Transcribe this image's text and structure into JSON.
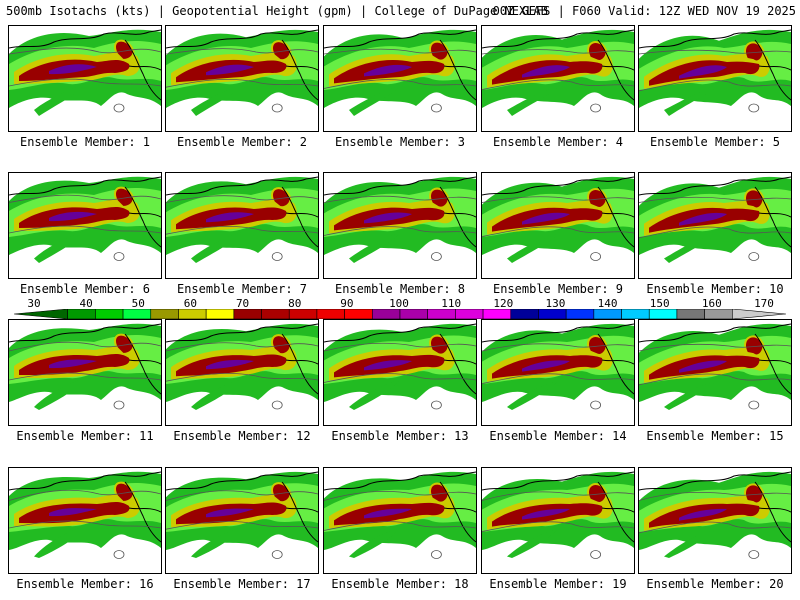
{
  "header": {
    "title": "500mb Isotachs (kts) | Geopotential Height (gpm) | College of DuPage NEXLAB",
    "run_info": "00Z GEFS | F060 Valid: 12Z WED NOV 19 2025"
  },
  "panels": [
    {
      "label": "Ensemble Member: 1"
    },
    {
      "label": "Ensemble Member: 2"
    },
    {
      "label": "Ensemble Member: 3"
    },
    {
      "label": "Ensemble Member: 4"
    },
    {
      "label": "Ensemble Member: 5"
    },
    {
      "label": "Ensemble Member: 6"
    },
    {
      "label": "Ensemble Member: 7"
    },
    {
      "label": "Ensemble Member: 8"
    },
    {
      "label": "Ensemble Member: 9"
    },
    {
      "label": "Ensemble Member: 10"
    },
    {
      "label": "Ensemble Member: 11"
    },
    {
      "label": "Ensemble Member: 12"
    },
    {
      "label": "Ensemble Member: 13"
    },
    {
      "label": "Ensemble Member: 14"
    },
    {
      "label": "Ensemble Member: 15"
    },
    {
      "label": "Ensemble Member: 16"
    },
    {
      "label": "Ensemble Member: 17"
    },
    {
      "label": "Ensemble Member: 18"
    },
    {
      "label": "Ensemble Member: 19"
    },
    {
      "label": "Ensemble Member: 20"
    }
  ],
  "colorbar": {
    "units": "kts",
    "tick_labels": [
      "30",
      "40",
      "50",
      "60",
      "70",
      "80",
      "90",
      "100",
      "110",
      "120",
      "130",
      "140",
      "150",
      "160",
      "170"
    ],
    "colors": [
      "#006600",
      "#009900",
      "#00cc00",
      "#00ff44",
      "#999900",
      "#cccc00",
      "#ffff00",
      "#990000",
      "#aa0000",
      "#cc0000",
      "#ee0000",
      "#ff0000",
      "#990099",
      "#aa00aa",
      "#cc00cc",
      "#dd00dd",
      "#ff00ff",
      "#000099",
      "#0000cc",
      "#0033ff",
      "#0099ff",
      "#00ccff",
      "#00ffff",
      "#777777",
      "#999999",
      "#cccccc"
    ]
  },
  "map_colors": {
    "jet_weak": "#22bb22",
    "jet_light": "#66ee44",
    "jet_mid": "#cccc00",
    "jet_core": "#990000",
    "jet_max": "#660099",
    "coast": "#000000",
    "contour": "#555555"
  }
}
